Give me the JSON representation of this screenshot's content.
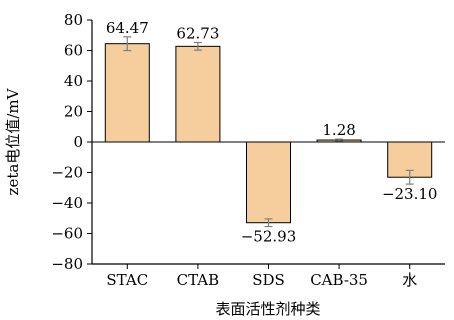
{
  "chart_data": {
    "type": "bar",
    "categories": [
      "STAC",
      "CTAB",
      "SDS",
      "CAB-35",
      "水"
    ],
    "values": [
      64.47,
      62.73,
      -52.93,
      1.28,
      -23.1
    ],
    "value_labels": [
      "64.47",
      "62.73",
      "−52.93",
      "1.28",
      "−23.10"
    ],
    "errors": [
      4.5,
      2.5,
      2.5,
      0.6,
      4.5
    ],
    "ylim": [
      -80,
      80
    ],
    "yticks": [
      -80,
      -60,
      -40,
      -20,
      0,
      20,
      40,
      60,
      80
    ],
    "ytick_labels": [
      "−80",
      "−60",
      "−40",
      "−20",
      "0",
      "20",
      "40",
      "60",
      "80"
    ],
    "xlabel": "表面活性剂种类",
    "ylabel": "zeta电位值/mV",
    "bar_color": "#F6CE9E",
    "edge_color": "#000000",
    "error_color": "#7F7F7F",
    "grid": false,
    "legend": "none"
  }
}
